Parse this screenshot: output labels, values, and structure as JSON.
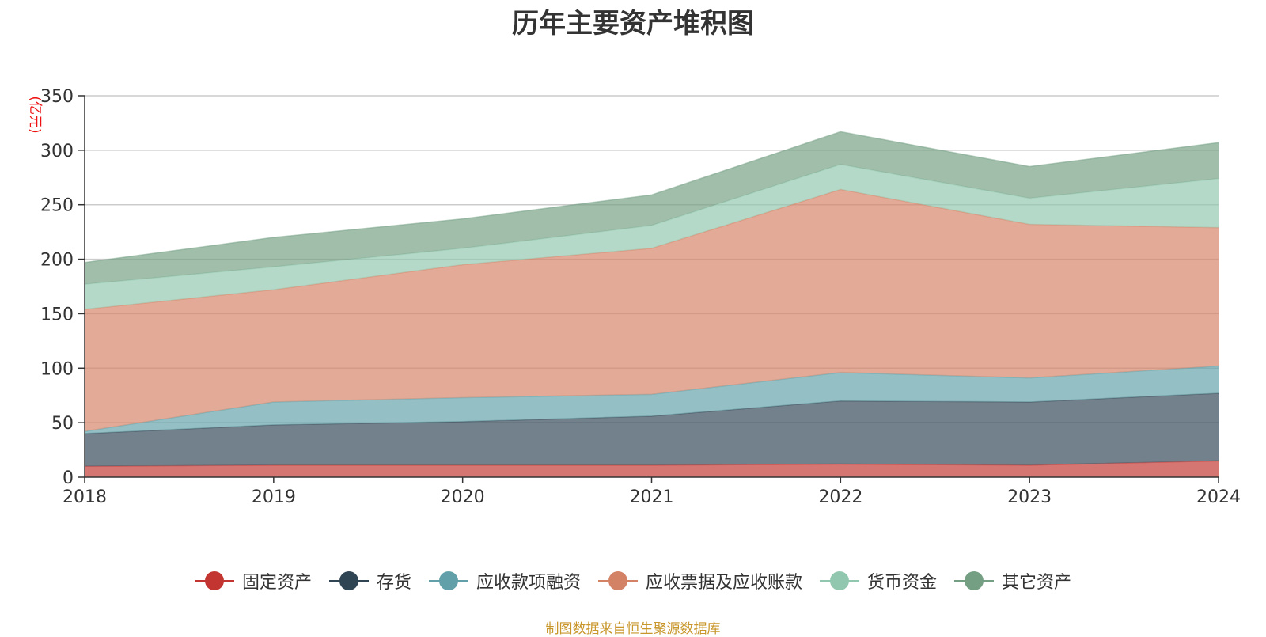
{
  "chart_data": {
    "type": "area",
    "stacked": true,
    "title": "历年主要资产堆积图",
    "ylabel": "(亿元)",
    "xlabel": "",
    "x": [
      "2018",
      "2019",
      "2020",
      "2021",
      "2022",
      "2023",
      "2024"
    ],
    "ylim": [
      0,
      350
    ],
    "yticks": [
      0,
      50,
      100,
      150,
      200,
      250,
      300,
      350
    ],
    "grid": true,
    "legend_position": "bottom",
    "series": [
      {
        "name": "固定资产",
        "color": "#c23531",
        "values": [
          10,
          11,
          11,
          11,
          12,
          11,
          15
        ]
      },
      {
        "name": "存货",
        "color": "#2f4554",
        "values": [
          30,
          37,
          40,
          45,
          58,
          58,
          62
        ]
      },
      {
        "name": "应收款项融资",
        "color": "#61a0a8",
        "values": [
          2,
          21,
          22,
          20,
          26,
          22,
          25
        ]
      },
      {
        "name": "应收票据及应收账款",
        "color": "#d48265",
        "values": [
          112,
          103,
          122,
          134,
          168,
          141,
          127
        ]
      },
      {
        "name": "货币资金",
        "color": "#91c7ae",
        "values": [
          23,
          21,
          15,
          21,
          23,
          24,
          45
        ]
      },
      {
        "name": "其它资产",
        "color": "#749f83",
        "values": [
          20,
          27,
          27,
          28,
          30,
          29,
          33
        ]
      }
    ]
  },
  "footer": {
    "source": "制图数据来自恒生聚源数据库"
  }
}
